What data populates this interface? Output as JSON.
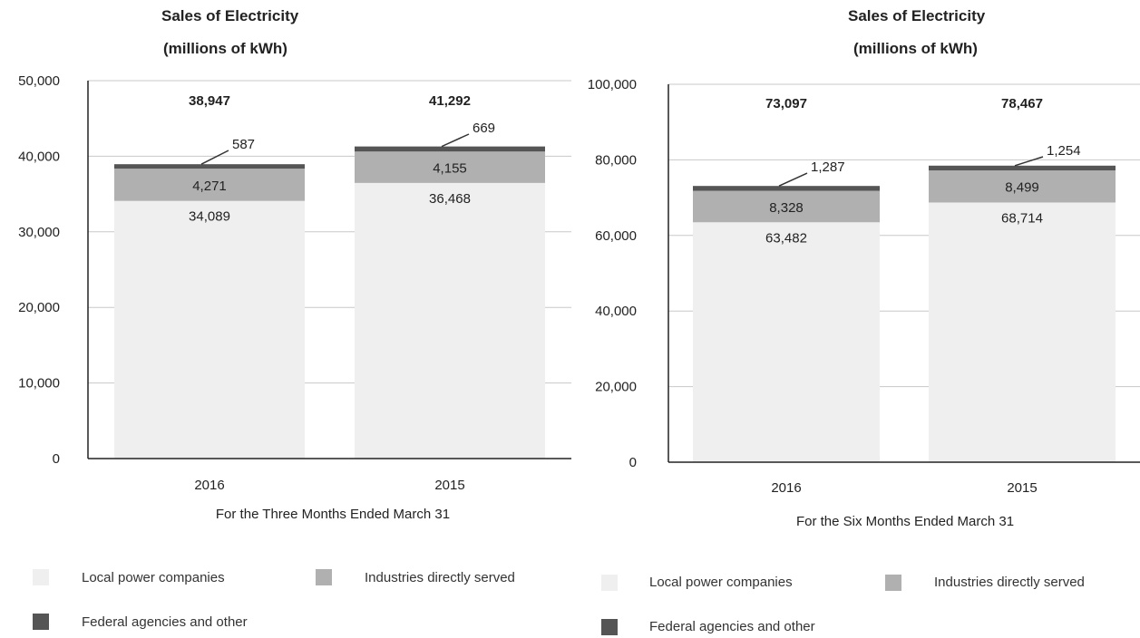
{
  "colors": {
    "local": "#efefef",
    "industries": "#b0b0b0",
    "federal": "#555555",
    "grid": "#c8c8c8",
    "axis": "#222222"
  },
  "chart_data": [
    {
      "type": "bar",
      "stacked": true,
      "title": "Sales of Electricity",
      "subtitle": "(millions of kWh)",
      "xlabel": "For the Three Months Ended March 31",
      "ylabel": "",
      "categories": [
        "2016",
        "2015"
      ],
      "series": [
        {
          "name": "Local power companies",
          "values": [
            34089,
            36468
          ]
        },
        {
          "name": "Industries directly served",
          "values": [
            4271,
            4155
          ]
        },
        {
          "name": "Federal agencies and other",
          "values": [
            587,
            669
          ]
        }
      ],
      "totals": [
        38947,
        41292
      ],
      "ylim": [
        0,
        50000
      ],
      "yticks": [
        0,
        10000,
        20000,
        30000,
        40000,
        50000
      ],
      "ytick_labels": [
        "0",
        "10,000",
        "20,000",
        "30,000",
        "40,000",
        "50,000"
      ],
      "value_labels": {
        "local": [
          "34,089",
          "36,468"
        ],
        "industries": [
          "4,271",
          "4,155"
        ],
        "federal": [
          "587",
          "669"
        ],
        "totals": [
          "38,947",
          "41,292"
        ]
      },
      "grid": true,
      "legend_position": "bottom"
    },
    {
      "type": "bar",
      "stacked": true,
      "title": "Sales of Electricity",
      "subtitle": "(millions of kWh)",
      "xlabel": "For the Six Months Ended March 31",
      "ylabel": "",
      "categories": [
        "2016",
        "2015"
      ],
      "series": [
        {
          "name": "Local power companies",
          "values": [
            63482,
            68714
          ]
        },
        {
          "name": "Industries directly served",
          "values": [
            8328,
            8499
          ]
        },
        {
          "name": "Federal agencies and other",
          "values": [
            1287,
            1254
          ]
        }
      ],
      "totals": [
        73097,
        78467
      ],
      "ylim": [
        0,
        100000
      ],
      "yticks": [
        0,
        20000,
        40000,
        60000,
        80000,
        100000
      ],
      "ytick_labels": [
        "0",
        "20,000",
        "40,000",
        "60,000",
        "80,000",
        "100,000"
      ],
      "value_labels": {
        "local": [
          "63,482",
          "68,714"
        ],
        "industries": [
          "8,328",
          "8,499"
        ],
        "federal": [
          "1,287",
          "1,254"
        ],
        "totals": [
          "73,097",
          "78,467"
        ]
      },
      "grid": true,
      "legend_position": "bottom"
    }
  ],
  "legends": [
    {
      "items": [
        "Local power companies",
        "Industries directly served",
        "Federal agencies and other"
      ]
    },
    {
      "items": [
        "Local power companies",
        "Industries directly served",
        "Federal agencies and other"
      ]
    }
  ]
}
